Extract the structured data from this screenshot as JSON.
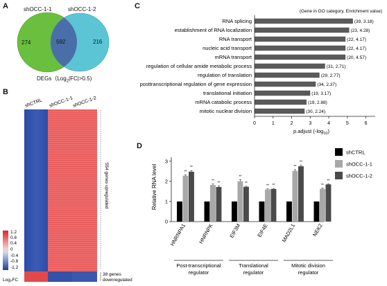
{
  "panels": {
    "a": "A",
    "b": "B",
    "c": "C",
    "d": "D"
  },
  "venn": {
    "left_label": "shOCC-1-1",
    "right_label": "shOCC-1-2",
    "left_only": "274",
    "overlap": "592",
    "right_only": "216",
    "caption_prefix": "DEGs（Log",
    "caption_sub": "2",
    "caption_suffix": "|FC|>0.5)",
    "colors": {
      "left": "#6abf3e",
      "right": "#5bc5d6",
      "overlap": "#4a6fa8"
    }
  },
  "heatmap": {
    "columns": [
      "shCTRL",
      "shOCC-1-1",
      "shOCC-1-2"
    ],
    "upregulated_label": "554 genes upregulated",
    "downregulated_label_1": "38 genes",
    "downregulated_label_2": "downregulated",
    "legend_ticks": [
      "1.2",
      "0.8",
      "0.4",
      "0",
      "-0.4",
      "-0.8",
      "-1.2"
    ],
    "legend_title": "Log₂FC",
    "colors": {
      "high": "#e8343a",
      "low": "#1f3f9e",
      "mid": "#f2f2f2"
    }
  },
  "go_chart": {
    "legend_note": "(Gene in GO category, Enrichment value)",
    "xlabel_prefix": "p.adjust (-log",
    "xlabel_sub": "10",
    "xlabel_suffix": ")",
    "bar_color": "#5a5a5a"
  },
  "chart_data": [
    {
      "type": "bar",
      "orientation": "horizontal",
      "categories": [
        "RNA splicing",
        "establishment of RNA localization",
        "RNA transport",
        "nucleic acid transport",
        "mRNA transport",
        "regulation of cellular amide metabolic process",
        "regulation of translation",
        "posttranscriptional regulation of gene expression",
        "translational initiation",
        "mRNA catabolic process",
        "mitotic nuclear division"
      ],
      "values": [
        5.3,
        5.1,
        4.9,
        4.9,
        4.9,
        3.8,
        3.5,
        3.3,
        3.0,
        2.8,
        2.7
      ],
      "annotations": [
        "(39, 3.18)",
        "(23, 4.28)",
        "(22, 4.17)",
        "(22, 4.17)",
        "(20, 4.57)",
        "(31, 2.71)",
        "(29, 2.77)",
        "(34, 2.37)",
        "(19, 3.17)",
        "(19, 2.88)",
        "(30, 2.24)"
      ],
      "xticks": [
        "0",
        "1",
        "2",
        "3",
        "4",
        "5",
        "6"
      ],
      "xlim": [
        0,
        6.5
      ],
      "xlabel": "p.adjust (-log10)",
      "ylabel": ""
    },
    {
      "type": "bar",
      "categories": [
        "HNRNPA1",
        "HNRNPK",
        "EIF3M",
        "EIF4E",
        "MAD2L1",
        "NEK2"
      ],
      "series": [
        {
          "name": "shCTRL",
          "values": [
            1,
            1,
            1,
            1,
            1,
            1
          ],
          "color": "#000000"
        },
        {
          "name": "shOCC-1-1",
          "values": [
            2.28,
            1.82,
            2.0,
            1.6,
            2.52,
            1.63
          ],
          "color": "#a8a8a8"
        },
        {
          "name": "shOCC-1-2",
          "values": [
            2.48,
            1.72,
            1.73,
            1.62,
            2.75,
            1.85
          ],
          "color": "#4a4a4a"
        }
      ],
      "errors": [
        [
          0,
          0,
          0,
          0,
          0,
          0
        ],
        [
          0.04,
          0.05,
          0.09,
          0.03,
          0.06,
          0.03
        ],
        [
          0.06,
          0.05,
          0.03,
          0.03,
          0.05,
          0.02
        ]
      ],
      "significance": "**",
      "yticks": [
        "0",
        "1",
        "2",
        "3"
      ],
      "ylim": [
        0,
        3.2
      ],
      "ylabel": "Relative RNA level",
      "groups": [
        {
          "label_1": "Post-transcriptional",
          "label_2": "regulator",
          "categories": [
            "HNRNPA1",
            "HNRNPK"
          ]
        },
        {
          "label_1": "Translational",
          "label_2": "regulator",
          "categories": [
            "EIF3M",
            "EIF4E"
          ]
        },
        {
          "label_1": "Mitotic division",
          "label_2": "regulator",
          "categories": [
            "MAD2L1",
            "NEK2"
          ]
        }
      ]
    }
  ]
}
